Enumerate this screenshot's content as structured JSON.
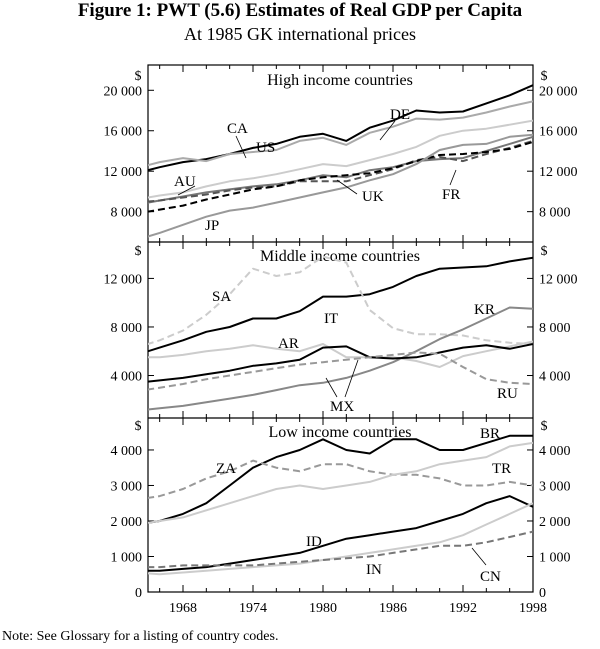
{
  "figure": {
    "title": "Figure 1: PWT (5.6) Estimates of Real GDP per Capita",
    "subtitle": "At 1985 GK international prices",
    "note": "Note: See Glossary for a listing of country codes."
  },
  "chart_data": [
    {
      "type": "line",
      "title": "High income countries",
      "unit_label": "$",
      "xlim": [
        1965,
        1998
      ],
      "ylim": [
        5000,
        22500
      ],
      "yticks": [
        8000,
        12000,
        16000,
        20000
      ],
      "ytick_labels": [
        "8 000",
        "12 000",
        "16 000",
        "20 000"
      ],
      "grid": false,
      "series": [
        {
          "name": "CA",
          "color": "#000000",
          "dash": "solid",
          "x": [
            1964,
            1966,
            1968,
            1970,
            1972,
            1974,
            1976,
            1978,
            1980,
            1982,
            1984,
            1986,
            1988,
            1990,
            1992,
            1994,
            1996,
            1998
          ],
          "y": [
            11800,
            12400,
            12900,
            13200,
            13700,
            14300,
            14700,
            15400,
            15700,
            15000,
            16300,
            17000,
            18000,
            17800,
            17900,
            18700,
            19500,
            20500
          ]
        },
        {
          "name": "US",
          "color": "#aaaaaa",
          "dash": "solid",
          "x": [
            1964,
            1966,
            1968,
            1970,
            1972,
            1974,
            1976,
            1978,
            1980,
            1982,
            1984,
            1986,
            1988,
            1990,
            1992,
            1994,
            1996,
            1998
          ],
          "y": [
            12300,
            12900,
            13300,
            13000,
            13700,
            13900,
            14100,
            15000,
            15300,
            14600,
            15800,
            16400,
            17200,
            17100,
            17300,
            17800,
            18400,
            18900
          ]
        },
        {
          "name": "DE",
          "color": "#cccccc",
          "dash": "solid",
          "x": [
            1964,
            1966,
            1968,
            1970,
            1972,
            1974,
            1976,
            1978,
            1980,
            1982,
            1984,
            1986,
            1988,
            1990,
            1992,
            1994,
            1996,
            1998
          ],
          "y": [
            9200,
            9600,
            9900,
            10500,
            11000,
            11300,
            11700,
            12200,
            12700,
            12500,
            13100,
            13700,
            14400,
            15500,
            16000,
            16200,
            16600,
            17000
          ]
        },
        {
          "name": "AU",
          "color": "#777777",
          "dash": "solid",
          "x": [
            1964,
            1966,
            1968,
            1970,
            1972,
            1974,
            1976,
            1978,
            1980,
            1982,
            1984,
            1986,
            1988,
            1990,
            1992,
            1994,
            1996,
            1998
          ],
          "y": [
            8700,
            9100,
            9500,
            9900,
            10200,
            10500,
            10700,
            11100,
            11600,
            11400,
            12100,
            12400,
            13000,
            13200,
            13300,
            14000,
            14700,
            15400
          ]
        },
        {
          "name": "UK",
          "color": "#555555",
          "dash": "dashed",
          "x": [
            1964,
            1966,
            1968,
            1970,
            1972,
            1974,
            1976,
            1978,
            1980,
            1982,
            1984,
            1986,
            1988,
            1990,
            1992,
            1994,
            1996,
            1998
          ],
          "y": [
            8900,
            9100,
            9400,
            9700,
            10100,
            10400,
            10500,
            11000,
            11000,
            11000,
            11600,
            12200,
            13100,
            13400,
            13000,
            13700,
            14300,
            15000
          ]
        },
        {
          "name": "FR",
          "color": "#000000",
          "dash": "dashed",
          "x": [
            1964,
            1966,
            1968,
            1970,
            1972,
            1974,
            1976,
            1978,
            1980,
            1982,
            1984,
            1986,
            1988,
            1990,
            1992,
            1994,
            1996,
            1998
          ],
          "y": [
            7800,
            8200,
            8600,
            9200,
            9700,
            10200,
            10500,
            11100,
            11400,
            11600,
            11800,
            12300,
            13000,
            13600,
            13700,
            13900,
            14200,
            14900
          ]
        },
        {
          "name": "JP",
          "color": "#999999",
          "dash": "solid",
          "x": [
            1964,
            1966,
            1968,
            1970,
            1972,
            1974,
            1976,
            1978,
            1980,
            1982,
            1984,
            1986,
            1988,
            1990,
            1992,
            1994,
            1996,
            1998
          ],
          "y": [
            5200,
            5900,
            6700,
            7500,
            8100,
            8400,
            8900,
            9400,
            9900,
            10400,
            11100,
            11700,
            12700,
            14100,
            14600,
            14700,
            15400,
            15600
          ]
        }
      ],
      "labels": [
        "CA",
        "US",
        "DE",
        "AU",
        "UK",
        "FR",
        "JP"
      ]
    },
    {
      "type": "line",
      "title": "Middle income countries",
      "unit_label": "$",
      "xlim": [
        1965,
        1998
      ],
      "ylim": [
        500,
        15000
      ],
      "yticks": [
        4000,
        8000,
        12000
      ],
      "ytick_labels": [
        "4 000",
        "8 000",
        "12 000"
      ],
      "grid": false,
      "series": [
        {
          "name": "IT",
          "color": "#000000",
          "dash": "solid",
          "x": [
            1964,
            1966,
            1968,
            1970,
            1972,
            1974,
            1976,
            1978,
            1980,
            1982,
            1984,
            1986,
            1988,
            1990,
            1992,
            1994,
            1996,
            1998
          ],
          "y": [
            5700,
            6300,
            6900,
            7600,
            8000,
            8700,
            8700,
            9300,
            10500,
            10500,
            10700,
            11300,
            12200,
            12800,
            12900,
            13000,
            13400,
            13700
          ]
        },
        {
          "name": "SA",
          "color": "#cccccc",
          "dash": "dashed",
          "x": [
            1964,
            1966,
            1968,
            1970,
            1972,
            1974,
            1976,
            1978,
            1980,
            1982,
            1984,
            1986,
            1988,
            1990,
            1992,
            1994,
            1996,
            1998
          ],
          "y": [
            6300,
            6900,
            7700,
            9000,
            10700,
            12800,
            12200,
            12500,
            13800,
            13300,
            9400,
            7900,
            7400,
            7400,
            7300,
            6900,
            6700,
            6600
          ]
        },
        {
          "name": "KR",
          "color": "#888888",
          "dash": "solid",
          "x": [
            1964,
            1966,
            1968,
            1970,
            1972,
            1974,
            1976,
            1978,
            1980,
            1982,
            1984,
            1986,
            1988,
            1990,
            1992,
            1994,
            1996,
            1998
          ],
          "y": [
            1100,
            1300,
            1500,
            1800,
            2100,
            2400,
            2800,
            3200,
            3400,
            3800,
            4400,
            5100,
            6000,
            7000,
            7800,
            8700,
            9600,
            9500
          ]
        },
        {
          "name": "AR",
          "color": "#cccccc",
          "dash": "solid",
          "x": [
            1964,
            1966,
            1968,
            1970,
            1972,
            1974,
            1976,
            1978,
            1980,
            1982,
            1984,
            1986,
            1988,
            1990,
            1992,
            1994,
            1996,
            1998
          ],
          "y": [
            5500,
            5500,
            5700,
            6000,
            6200,
            6500,
            6200,
            6000,
            6600,
            5500,
            5500,
            5500,
            5200,
            4700,
            5600,
            6000,
            6400,
            6800
          ]
        },
        {
          "name": "MX",
          "color": "#000000",
          "dash": "solid",
          "x": [
            1964,
            1966,
            1968,
            1970,
            1972,
            1974,
            1976,
            1978,
            1980,
            1982,
            1984,
            1986,
            1988,
            1990,
            1992,
            1994,
            1996,
            1998
          ],
          "y": [
            3400,
            3600,
            3800,
            4100,
            4400,
            4800,
            5000,
            5300,
            6300,
            6400,
            5500,
            5400,
            5500,
            5900,
            6300,
            6500,
            6200,
            6600
          ]
        },
        {
          "name": "RU",
          "color": "#999999",
          "dash": "dashed",
          "x": [
            1964,
            1966,
            1968,
            1970,
            1972,
            1974,
            1976,
            1978,
            1980,
            1982,
            1984,
            1986,
            1988,
            1990,
            1992,
            1994,
            1996,
            1998
          ],
          "y": [
            2700,
            3000,
            3300,
            3700,
            4000,
            4300,
            4600,
            4900,
            5100,
            5300,
            5500,
            5700,
            5900,
            5800,
            4700,
            3700,
            3400,
            3300
          ]
        }
      ],
      "labels": [
        "SA",
        "IT",
        "KR",
        "AR",
        "MX",
        "RU"
      ]
    },
    {
      "type": "line",
      "title": "Low income countries",
      "unit_label": "$",
      "xlim": [
        1965,
        1998
      ],
      "ylim": [
        0,
        4900
      ],
      "yticks": [
        0,
        1000,
        2000,
        3000,
        4000
      ],
      "ytick_labels": [
        "0",
        "1 000",
        "2 000",
        "3 000",
        "4 000"
      ],
      "xticks": [
        1968,
        1974,
        1980,
        1986,
        1992,
        1998
      ],
      "grid": false,
      "series": [
        {
          "name": "BR",
          "color": "#000000",
          "dash": "solid",
          "x": [
            1964,
            1966,
            1968,
            1970,
            1972,
            1974,
            1976,
            1978,
            1980,
            1982,
            1984,
            1986,
            1988,
            1990,
            1992,
            1994,
            1996,
            1998
          ],
          "y": [
            1900,
            2000,
            2200,
            2500,
            3000,
            3500,
            3800,
            4000,
            4300,
            4000,
            3900,
            4300,
            4300,
            4000,
            4000,
            4200,
            4400,
            4400
          ]
        },
        {
          "name": "ZA",
          "color": "#999999",
          "dash": "dashed",
          "x": [
            1964,
            1966,
            1968,
            1970,
            1972,
            1974,
            1976,
            1978,
            1980,
            1982,
            1984,
            1986,
            1988,
            1990,
            1992,
            1994,
            1996,
            1998
          ],
          "y": [
            2600,
            2700,
            2900,
            3200,
            3400,
            3700,
            3500,
            3400,
            3600,
            3600,
            3400,
            3300,
            3300,
            3200,
            3000,
            3000,
            3100,
            3000
          ]
        },
        {
          "name": "TR",
          "color": "#cccccc",
          "dash": "solid",
          "x": [
            1964,
            1966,
            1968,
            1970,
            1972,
            1974,
            1976,
            1978,
            1980,
            1982,
            1984,
            1986,
            1988,
            1990,
            1992,
            1994,
            1996,
            1998
          ],
          "y": [
            1900,
            2000,
            2100,
            2300,
            2500,
            2700,
            2900,
            3000,
            2900,
            3000,
            3100,
            3300,
            3400,
            3600,
            3700,
            3800,
            4100,
            4200
          ]
        },
        {
          "name": "ID",
          "color": "#000000",
          "dash": "solid",
          "x": [
            1964,
            1966,
            1968,
            1970,
            1972,
            1974,
            1976,
            1978,
            1980,
            1982,
            1984,
            1986,
            1988,
            1990,
            1992,
            1994,
            1996,
            1998
          ],
          "y": [
            600,
            600,
            650,
            700,
            800,
            900,
            1000,
            1100,
            1300,
            1500,
            1600,
            1700,
            1800,
            2000,
            2200,
            2500,
            2700,
            2400
          ]
        },
        {
          "name": "CN",
          "color": "#cccccc",
          "dash": "solid",
          "x": [
            1964,
            1966,
            1968,
            1970,
            1972,
            1974,
            1976,
            1978,
            1980,
            1982,
            1984,
            1986,
            1988,
            1990,
            1992,
            1994,
            1996,
            1998
          ],
          "y": [
            550,
            500,
            550,
            600,
            650,
            700,
            750,
            800,
            900,
            1000,
            1100,
            1200,
            1300,
            1400,
            1600,
            1900,
            2200,
            2500
          ]
        },
        {
          "name": "IN",
          "color": "#777777",
          "dash": "dashed",
          "x": [
            1964,
            1966,
            1968,
            1970,
            1972,
            1974,
            1976,
            1978,
            1980,
            1982,
            1984,
            1986,
            1988,
            1990,
            1992,
            1994,
            1996,
            1998
          ],
          "y": [
            700,
            700,
            750,
            750,
            750,
            750,
            800,
            850,
            900,
            950,
            1000,
            1100,
            1200,
            1300,
            1300,
            1400,
            1550,
            1700
          ]
        }
      ],
      "labels": [
        "BR",
        "ZA",
        "TR",
        "ID",
        "IN",
        "CN"
      ]
    }
  ]
}
